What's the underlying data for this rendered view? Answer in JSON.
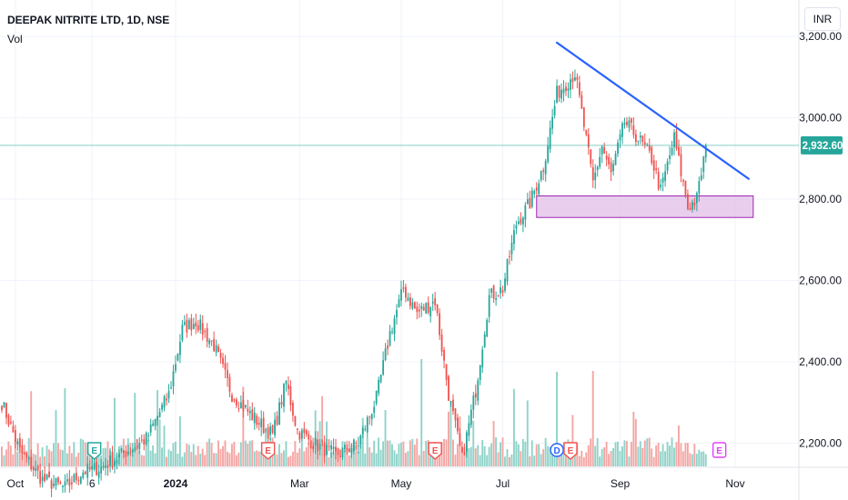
{
  "header": {
    "title": "DEEPAK NITRITE LTD, 1D, NSE",
    "indicator": "Vol",
    "currency": "INR"
  },
  "colors": {
    "up": "#26a69a",
    "down": "#ef5350",
    "up_volume": "#8fd3c9",
    "down_volume": "#f4a6a4",
    "trendline": "#2962ff",
    "support_zone_fill": "#e1bee7",
    "support_zone_border": "#9c27b0",
    "price_label": "#26a69a",
    "grid": "#f0f3fa",
    "earnings_red": "#ef5350",
    "earnings_pink": "#e040fb",
    "earnings_green": "#26a69a",
    "dividend_blue": "#2962ff"
  },
  "chart_data": {
    "type": "candlestick",
    "y_axis": {
      "min": 2060,
      "max": 3290,
      "ticks": [
        {
          "value": 3200,
          "label": "3,200.00"
        },
        {
          "value": 3000,
          "label": "3,000.00"
        },
        {
          "value": 2800,
          "label": "2,800.00"
        },
        {
          "value": 2600,
          "label": "2,600.00"
        },
        {
          "value": 2400,
          "label": "2,400.00"
        },
        {
          "value": 2200,
          "label": "2,200.00"
        }
      ]
    },
    "x_axis": {
      "ticks": [
        {
          "label": "Oct",
          "bar": 6
        },
        {
          "label": "6",
          "bar": 40,
          "bold": false
        },
        {
          "label": "2024",
          "bar": 77,
          "bold": true
        },
        {
          "label": "Mar",
          "bar": 132
        },
        {
          "label": "May",
          "bar": 177
        },
        {
          "label": "Jul",
          "bar": 222
        },
        {
          "label": "Sep",
          "bar": 274
        },
        {
          "label": "Nov",
          "bar": 325
        }
      ]
    },
    "last_price": {
      "value": 2932.6,
      "label": "2,932.60"
    },
    "trendline": {
      "start_bar": 246,
      "start_price": 3185,
      "end_bar": 331,
      "end_price": 2850
    },
    "support_zone": {
      "start_bar": 237,
      "end_bar": 333,
      "low": 2755,
      "high": 2808
    },
    "key_points": [
      [
        0,
        2300
      ],
      [
        8,
        2180
      ],
      [
        18,
        2110
      ],
      [
        28,
        2090
      ],
      [
        36,
        2130
      ],
      [
        44,
        2140
      ],
      [
        54,
        2175
      ],
      [
        64,
        2210
      ],
      [
        74,
        2320
      ],
      [
        80,
        2480
      ],
      [
        86,
        2500
      ],
      [
        94,
        2440
      ],
      [
        102,
        2320
      ],
      [
        112,
        2260
      ],
      [
        120,
        2220
      ],
      [
        126,
        2350
      ],
      [
        131,
        2230
      ],
      [
        138,
        2200
      ],
      [
        148,
        2170
      ],
      [
        158,
        2200
      ],
      [
        166,
        2310
      ],
      [
        172,
        2470
      ],
      [
        178,
        2580
      ],
      [
        184,
        2520
      ],
      [
        192,
        2550
      ],
      [
        198,
        2320
      ],
      [
        204,
        2160
      ],
      [
        210,
        2330
      ],
      [
        216,
        2560
      ],
      [
        222,
        2580
      ],
      [
        228,
        2740
      ],
      [
        234,
        2790
      ],
      [
        240,
        2880
      ],
      [
        246,
        3060
      ],
      [
        254,
        3110
      ],
      [
        258,
        2980
      ],
      [
        262,
        2840
      ],
      [
        266,
        2930
      ],
      [
        270,
        2860
      ],
      [
        276,
        2990
      ],
      [
        282,
        2950
      ],
      [
        288,
        2900
      ],
      [
        292,
        2820
      ],
      [
        298,
        2950
      ],
      [
        304,
        2780
      ],
      [
        308,
        2800
      ],
      [
        312,
        2930
      ]
    ],
    "events": [
      {
        "type": "E",
        "bar": 41,
        "color": "green"
      },
      {
        "type": "E",
        "bar": 118,
        "color": "red"
      },
      {
        "type": "E",
        "bar": 192,
        "color": "red"
      },
      {
        "type": "D",
        "bar": 246,
        "color": "blue"
      },
      {
        "type": "E",
        "bar": 252,
        "color": "red"
      },
      {
        "type": "E",
        "bar": 318,
        "color": "pink"
      }
    ]
  }
}
